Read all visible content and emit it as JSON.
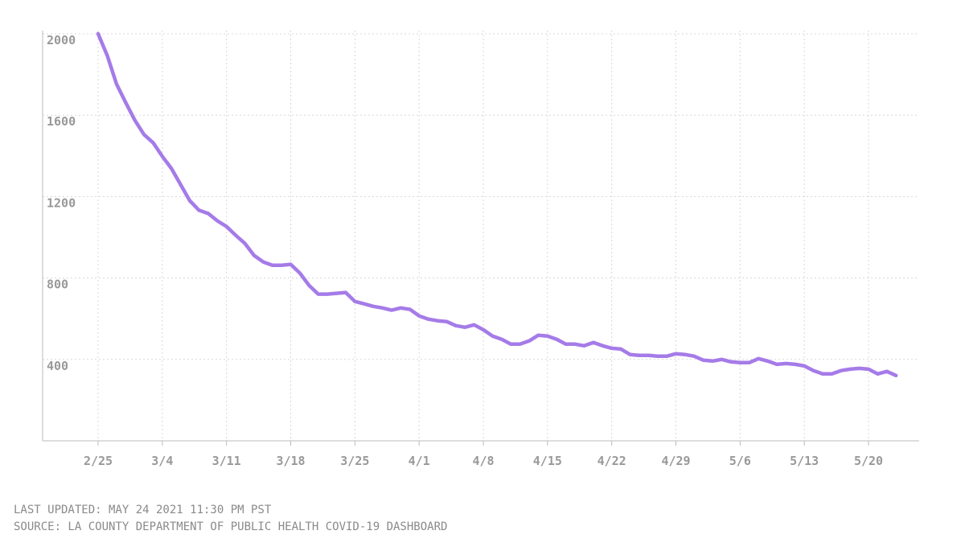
{
  "chart_data": {
    "type": "line",
    "categories": [
      "2/25",
      null,
      null,
      null,
      null,
      null,
      null,
      "3/4",
      null,
      null,
      null,
      null,
      null,
      null,
      "3/11",
      null,
      null,
      null,
      null,
      null,
      null,
      "3/18",
      null,
      null,
      null,
      null,
      null,
      null,
      "3/25",
      null,
      null,
      null,
      null,
      null,
      null,
      "4/1",
      null,
      null,
      null,
      null,
      null,
      null,
      "4/8",
      null,
      null,
      null,
      null,
      null,
      null,
      "4/15",
      null,
      null,
      null,
      null,
      null,
      null,
      "4/22",
      null,
      null,
      null,
      null,
      null,
      null,
      "4/29",
      null,
      null,
      null,
      null,
      null,
      null,
      "5/6",
      null,
      null,
      null,
      null,
      null,
      null,
      "5/13",
      null,
      null,
      null,
      null,
      null,
      null,
      "5/20",
      null,
      null,
      null
    ],
    "values": [
      2000,
      1893,
      1754,
      1663,
      1576,
      1505,
      1465,
      1398,
      1338,
      1259,
      1180,
      1133,
      1117,
      1081,
      1053,
      1010,
      970,
      911,
      879,
      863,
      863,
      867,
      824,
      764,
      721,
      721,
      725,
      729,
      685,
      673,
      661,
      653,
      642,
      653,
      646,
      614,
      598,
      590,
      586,
      566,
      558,
      570,
      546,
      515,
      499,
      475,
      475,
      491,
      519,
      515,
      499,
      475,
      475,
      467,
      483,
      467,
      455,
      451,
      424,
      420,
      420,
      416,
      416,
      428,
      424,
      416,
      396,
      392,
      400,
      388,
      384,
      384,
      404,
      392,
      376,
      380,
      376,
      368,
      345,
      329,
      329,
      345,
      352,
      356,
      352,
      329,
      341,
      321
    ],
    "color": "#a57be8",
    "ylim": [
      0,
      2000
    ],
    "yticks": [
      400,
      800,
      1200,
      1600,
      2000
    ],
    "grid": true,
    "footer": [
      "LAST UPDATED: MAY 24 2021 11:30 PM PST",
      "SOURCE: LA COUNTY DEPARTMENT OF PUBLIC HEALTH COVID-19 DASHBOARD"
    ]
  }
}
